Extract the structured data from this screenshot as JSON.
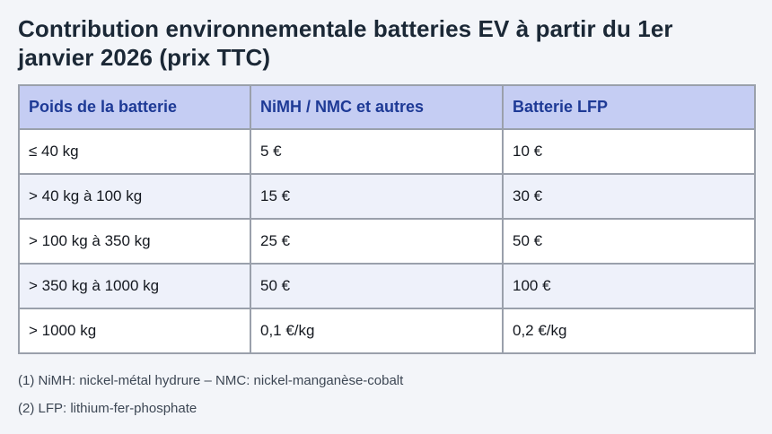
{
  "title": "Contribution environnementale batteries EV à partir du 1er janvier 2026 (prix TTC)",
  "table": {
    "columns": [
      "Poids de la batterie",
      "NiMH / NMC et autres",
      "Batterie LFP"
    ],
    "rows": [
      [
        "≤ 40 kg",
        "5 €",
        "10 €"
      ],
      [
        "> 40 kg à 100 kg",
        "15 €",
        "30 €"
      ],
      [
        "> 100 kg à 350 kg",
        "25 €",
        "50 €"
      ],
      [
        "> 350 kg à 1000 kg",
        "50 €",
        "100 €"
      ],
      [
        "> 1000 kg",
        "0,1 €/kg",
        "0,2 €/kg"
      ]
    ]
  },
  "footnotes": [
    "(1) NiMH: nickel-métal hydrure – NMC: nickel-manganèse-cobalt",
    "(2) LFP: lithium-fer-phosphate"
  ],
  "colors": {
    "page_background": "#f3f5f9",
    "title_text": "#1b2836",
    "header_background": "#c5cdf3",
    "header_text": "#1e3a96",
    "row_alt_background": "#eef1fa",
    "row_background": "#ffffff",
    "cell_text": "#14181f",
    "border": "#9aa0ab",
    "footnote_text": "#3d4754"
  }
}
